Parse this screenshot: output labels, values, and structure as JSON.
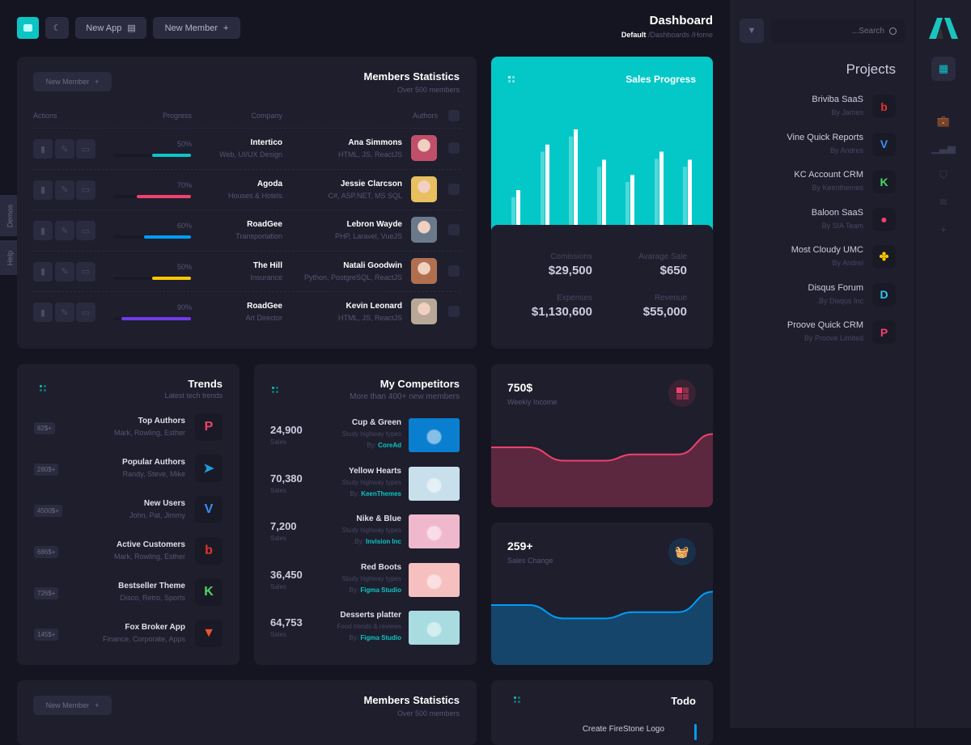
{
  "topbar": {
    "new_app": "New App",
    "new_member": "New Member",
    "title": "Dashboard",
    "breadcrumb": [
      "Default",
      "/Dashboards",
      "/Home"
    ]
  },
  "side_tabs": [
    "Demos",
    "Help"
  ],
  "members": {
    "title": "Members Statistics",
    "subtitle": "Over 500 members",
    "button": "New Member",
    "columns": [
      "Actions",
      "Progress",
      "Company",
      "Authors"
    ],
    "rows": [
      {
        "progress": 50,
        "progress_label": "50%",
        "color": "#0bc5c5",
        "company": "Intertico",
        "company_sub": "Web, UI/UX Design",
        "author": "Ana Simmons",
        "skills": "HTML, JS, ReactJS",
        "avatar": "#c0506a"
      },
      {
        "progress": 70,
        "progress_label": "70%",
        "color": "#f1416c",
        "company": "Agoda",
        "company_sub": "Houses & Hotels",
        "author": "Jessie Clarcson",
        "skills": "C#, ASP.NET, MS SQL",
        "avatar": "#e8c060"
      },
      {
        "progress": 60,
        "progress_label": "60%",
        "color": "#009ef7",
        "company": "RoadGee",
        "company_sub": "Transportation",
        "author": "Lebron Wayde",
        "skills": "PHP, Laravel, VueJS",
        "avatar": "#6a7a8a"
      },
      {
        "progress": 50,
        "progress_label": "50%",
        "color": "#ffc700",
        "company": "The Hill",
        "company_sub": "Insurance",
        "author": "Natali Goodwin",
        "skills": "Python, PostgreSQL, ReactJS",
        "avatar": "#b07050"
      },
      {
        "progress": 90,
        "progress_label": "90%",
        "color": "#7239ea",
        "company": "RoadGee",
        "company_sub": "Art Director",
        "author": "Kevin Leonard",
        "skills": "HTML, JS, ReactJS",
        "avatar": "#b8a898"
      }
    ]
  },
  "sales": {
    "title": "Sales Progress",
    "accent": "#04c8c8",
    "bars": {
      "primary": [
        40,
        85,
        100,
        70,
        55,
        78,
        70
      ],
      "secondary": [
        33,
        78,
        93,
        63,
        48,
        71,
        63
      ]
    },
    "stats": [
      {
        "label": "Comissions",
        "value": "$29,500"
      },
      {
        "label": "Avarage Sale",
        "value": "$650"
      },
      {
        "label": "Expenses",
        "value": "$1,130,600"
      },
      {
        "label": "Revenue",
        "value": "$55,000"
      }
    ]
  },
  "trends": {
    "title": "Trends",
    "subtitle": "Latest tech trends",
    "items": [
      {
        "title": "Top Authors",
        "sub": "Mark, Rowling, Esther",
        "badge": "82$+",
        "icon": "proove-icon",
        "glyph": "P",
        "color": "#f1416c"
      },
      {
        "title": "Popular Authors",
        "sub": "Randy, Steve, Mike",
        "badge": "280$+",
        "icon": "telegram-icon",
        "glyph": "➤",
        "color": "#1e9de3"
      },
      {
        "title": "New Users",
        "sub": "John, Pat, Jimmy",
        "badge": "4500$+",
        "icon": "vimeo-icon",
        "glyph": "V",
        "color": "#3a8ef6"
      },
      {
        "title": "Active Customers",
        "sub": "Mark, Rowling, Esther",
        "badge": "686$+",
        "icon": "bebo-icon",
        "glyph": "b",
        "color": "#e8322d"
      },
      {
        "title": "Bestseller Theme",
        "sub": "Disco, Retro, Sports",
        "badge": "726$+",
        "icon": "kickstarter-icon",
        "glyph": "K",
        "color": "#4cd964"
      },
      {
        "title": "Fox Broker App",
        "sub": "Finance, Corporate, Apps",
        "badge": "145$+",
        "icon": "fox-icon",
        "glyph": "▼",
        "color": "#f0532d"
      }
    ]
  },
  "competitors": {
    "title": "My Competitors",
    "subtitle": "More than 400+ new members",
    "sales_label": "Sales",
    "items": [
      {
        "value": "24,900",
        "title": "Cup & Green",
        "sub": "Study highway types",
        "by": "By:",
        "author": "CoreAd",
        "img": "#0a7fd0"
      },
      {
        "value": "70,380",
        "title": "Yellow Hearts",
        "sub": "Study highway types",
        "by": "By:",
        "author": "KeenThemes",
        "img": "#c8e0ec"
      },
      {
        "value": "7,200",
        "title": "Nike & Blue",
        "sub": "Study highway types",
        "by": ".By:",
        "author": "Invision Inc",
        "img": "#f0b8cc"
      },
      {
        "value": "36,450",
        "title": "Red Boots",
        "sub": "Study highway types",
        "by": "By:",
        "author": "Figma Studio",
        "img": "#f6c0c0"
      },
      {
        "value": "64,753",
        "title": "Desserts platter",
        "sub": "Food trends & reviews",
        "by": "By:",
        "author": "Figma Studio",
        "img": "#a8dce0"
      }
    ]
  },
  "weekly": {
    "value": "750$",
    "label": "Weekly Income",
    "color": "#f1416c",
    "fill": "#5c283f",
    "values": [
      40,
      40,
      25,
      25,
      32,
      32,
      55
    ]
  },
  "sales_change": {
    "value": "259+",
    "label": "Sales Change",
    "color": "#009ef7",
    "fill": "#16456b",
    "values": [
      40,
      40,
      25,
      25,
      32,
      32,
      55
    ]
  },
  "members2": {
    "title": "Members Statistics",
    "subtitle": "Over 500 members",
    "button": "New Member"
  },
  "todo": {
    "title": "Todo",
    "items": [
      "Create FireStone Logo"
    ]
  },
  "panel": {
    "search_placeholder": "...Search",
    "title": "Projects",
    "items": [
      {
        "name": "Briviba SaaS",
        "by": "By James",
        "glyph": "b",
        "color": "#e8322d",
        "icon": "bebo-icon"
      },
      {
        "name": "Vine Quick Reports",
        "by": "By Andres",
        "glyph": "V",
        "color": "#3a8ef6",
        "icon": "vimeo-icon"
      },
      {
        "name": "KC Account CRM",
        "by": "By Keenthemes",
        "glyph": "K",
        "color": "#4cd964",
        "icon": "kickstarter-icon"
      },
      {
        "name": "Baloon SaaS",
        "by": "By SIA Team",
        "glyph": "●",
        "color": "#f1416c",
        "icon": "balloon-icon"
      },
      {
        "name": "Most Cloudy UMC",
        "by": "By Andrei",
        "glyph": "✤",
        "color": "#ffc700",
        "icon": "cloudy-icon"
      },
      {
        "name": "Disqus Forum",
        "by": ".By Disqus Inc",
        "glyph": "D",
        "color": "#2ec7f0",
        "icon": "disqus-icon"
      },
      {
        "name": "Proove Quick CRM",
        "by": "By Proove Limited",
        "glyph": "P",
        "color": "#f1416c",
        "icon": "proove-icon"
      }
    ]
  },
  "aside": {
    "nav": [
      "dashboard-icon",
      "briefcase-icon",
      "chart-icon",
      "shield-icon",
      "layers-icon",
      "file-add-icon"
    ]
  }
}
